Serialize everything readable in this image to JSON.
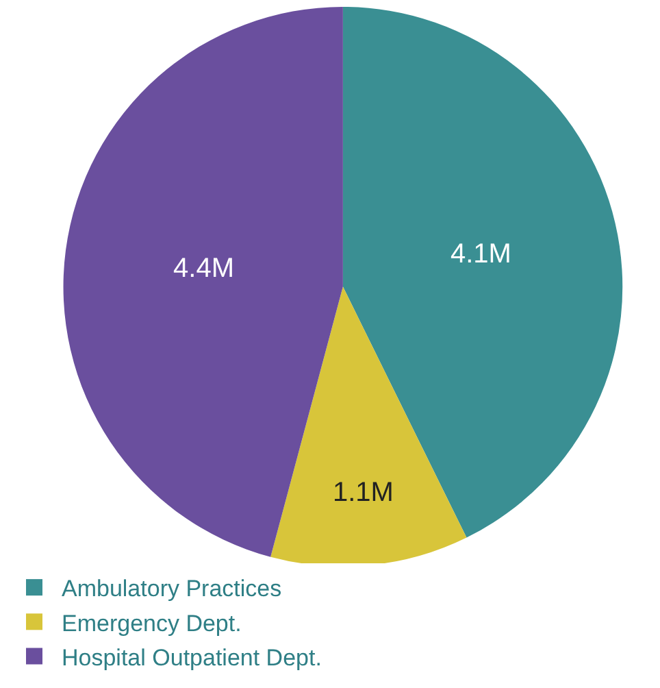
{
  "chart_data": {
    "type": "pie",
    "categories": [
      "Ambulatory Practices",
      "Emergency Dept.",
      "Hospital Outpatient Dept."
    ],
    "values": [
      4.1,
      1.1,
      4.4
    ],
    "value_labels": [
      "4.1M",
      "1.1M",
      "4.4M"
    ],
    "colors": [
      "#3a8f93",
      "#d8c53a",
      "#6a4f9e"
    ],
    "legend": "bottom"
  }
}
